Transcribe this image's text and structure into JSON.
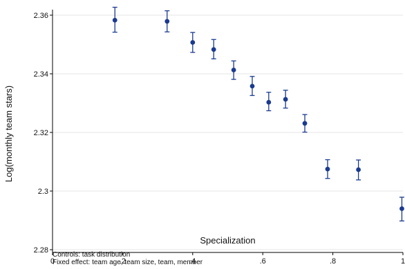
{
  "chart_data": {
    "type": "scatter",
    "xlabel": "Specialization",
    "ylabel": "Log(monthly team stars)",
    "xlim": [
      0,
      1
    ],
    "ylim": [
      2.28,
      2.36
    ],
    "xticks": [
      0,
      0.2,
      0.4,
      0.6,
      0.8,
      1
    ],
    "xtick_labels": [
      "0",
      ".2",
      ".4",
      ".6",
      ".8",
      "1"
    ],
    "yticks": [
      2.28,
      2.3,
      2.32,
      2.34,
      2.36
    ],
    "ytick_labels": [
      "2.28",
      "2.3",
      "2.32",
      "2.34",
      "2.36"
    ],
    "grid": "horizontal",
    "error_bars": true,
    "colors": {
      "marker": "#1a3a8f",
      "grid": "#e6e6e6",
      "axis": "#000000"
    },
    "points": [
      {
        "x": 0.178,
        "y": 2.3583,
        "lo": 2.3542,
        "hi": 2.3627
      },
      {
        "x": 0.327,
        "y": 2.3579,
        "lo": 2.3543,
        "hi": 2.3615
      },
      {
        "x": 0.4,
        "y": 2.3507,
        "lo": 2.3473,
        "hi": 2.3541
      },
      {
        "x": 0.46,
        "y": 2.3483,
        "lo": 2.3451,
        "hi": 2.3517
      },
      {
        "x": 0.517,
        "y": 2.3413,
        "lo": 2.3381,
        "hi": 2.3444
      },
      {
        "x": 0.57,
        "y": 2.3358,
        "lo": 2.3326,
        "hi": 2.3391
      },
      {
        "x": 0.617,
        "y": 2.3303,
        "lo": 2.3274,
        "hi": 2.3337
      },
      {
        "x": 0.665,
        "y": 2.3313,
        "lo": 2.3283,
        "hi": 2.3344
      },
      {
        "x": 0.72,
        "y": 2.3231,
        "lo": 2.3201,
        "hi": 2.3261
      },
      {
        "x": 0.785,
        "y": 2.3075,
        "lo": 2.3043,
        "hi": 2.3107
      },
      {
        "x": 0.873,
        "y": 2.3073,
        "lo": 2.3038,
        "hi": 2.3106
      },
      {
        "x": 0.997,
        "y": 2.294,
        "lo": 2.2898,
        "hi": 2.2979
      }
    ]
  },
  "notes": {
    "line1": "Controls: task distribution",
    "line2": "Fixed effect:  team age, team size, team, member"
  }
}
